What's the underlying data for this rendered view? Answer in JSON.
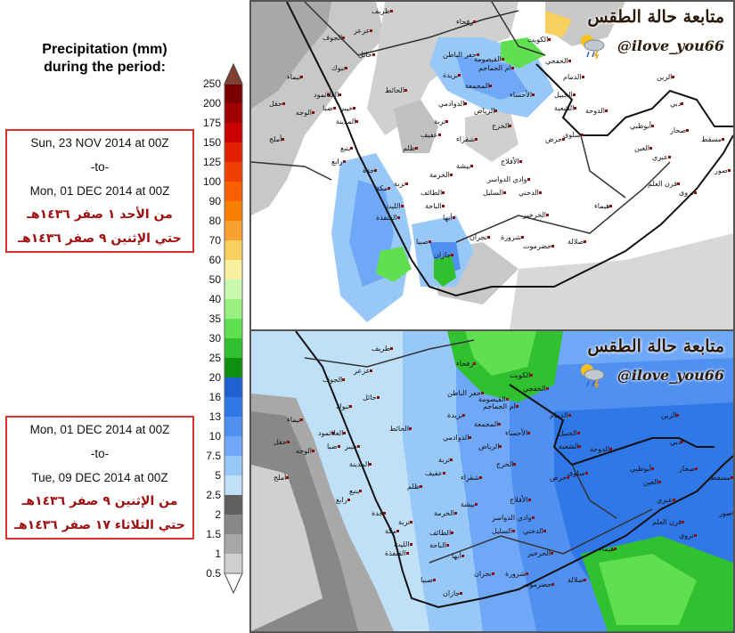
{
  "legend": {
    "title": "Precipitation (mm)\nduring the period:",
    "title_line1": "Precipitation (mm)",
    "title_line2": "during the period:",
    "levels": [
      "250",
      "200",
      "175",
      "150",
      "125",
      "100",
      "90",
      "80",
      "70",
      "60",
      "50",
      "40",
      "35",
      "30",
      "25",
      "20",
      "16",
      "13",
      "10",
      "7.5",
      "5",
      "2.5",
      "2",
      "1.5",
      "1",
      "0.5"
    ],
    "colors": [
      "#804030",
      "#7a0000",
      "#a00000",
      "#c80000",
      "#e02000",
      "#f04000",
      "#f86000",
      "#f88000",
      "#f8a030",
      "#f8d060",
      "#f8f0a0",
      "#c8f8b0",
      "#98f080",
      "#60e050",
      "#30c030",
      "#109010",
      "#2060d0",
      "#3078e8",
      "#5090f0",
      "#70a8f8",
      "#98c8f8",
      "#c0e0f8",
      "#606060",
      "#888888",
      "#a8a8a8",
      "#d0d0d0"
    ]
  },
  "periods": [
    {
      "start": "Sun, 23 NOV 2014 at 00Z",
      "sep": "-to-",
      "end": "Mon, 01 DEC 2014 at 00Z",
      "ar_line1": "من الأحد ١ صفر ١٤٣٦هـ",
      "ar_line2": "حتي الإثنين ٩ صفر ١٤٣٦هـ"
    },
    {
      "start": "Mon, 01 DEC 2014 at 00Z",
      "sep": "-to-",
      "end": "Tue, 09 DEC 2014 at 00Z",
      "ar_line1": "من الإثنين ٩ صفر ١٤٣٦هـ",
      "ar_line2": "حتي الثلاثاء ١٧ صفر ١٤٣٦هـ"
    }
  ],
  "watermark": {
    "arabic": "متابعة حالة الطقس",
    "handle": "@ilove_you66",
    "icon": "partly-cloudy-rain-icon"
  },
  "cities": {
    "top": [
      "طريف",
      "الجوف",
      "عرعر",
      "رفحاء",
      "تبوك",
      "حائل",
      "الكويت",
      "الخفجي",
      "بريدة",
      "الدمام",
      "المجمعة",
      "الأحساء",
      "الرياض",
      "المدينة",
      "ينبع",
      "الدوادمي",
      "الخرج",
      "جدة",
      "مكة",
      "الطائف",
      "الباحة",
      "بيشة",
      "السليل",
      "أبها",
      "نجران",
      "جازان",
      "شرورة",
      "الدوحة",
      "أبوظبي",
      "دبي",
      "العين",
      "صحار",
      "مسقط",
      "صور",
      "عبري",
      "نزوى",
      "قرن العلم",
      "هيماء",
      "صلالة",
      "حضرموت",
      "ثمود",
      "تيماء",
      "العلا",
      "الوجه",
      "ضبا",
      "حقل",
      "الحائط",
      "خيبر",
      "أملج",
      "رابغ",
      "القنفذة",
      "صبيا",
      "الليث",
      "تربة",
      "الخرمة",
      "ظلم",
      "عفيف",
      "شقراء",
      "حفر الباطن",
      "القيصومة",
      "الجبيل",
      "سلوى",
      "حرض",
      "الأفلاج",
      "وادي الدواسر",
      "الدخني",
      "الخرخير",
      "الرين",
      "ام الجماجم",
      "تربة",
      "الشعبة"
    ],
    "bottom": [
      "طريف",
      "الجوف",
      "عرعر",
      "رفحاء",
      "تبوك",
      "حائل",
      "الكويت",
      "الخفجي",
      "بريدة",
      "الدمام",
      "المجمعة",
      "الأحساء",
      "الرياض",
      "المدينة",
      "ينبع",
      "الدوادمي",
      "الخرج",
      "جدة",
      "مكة",
      "الطائف",
      "الباحة",
      "بيشة",
      "السليل",
      "أبها",
      "نجران",
      "جازان",
      "شرورة",
      "الدوحة",
      "أبوظبي",
      "دبي",
      "العين",
      "صحار",
      "مسقط",
      "صور",
      "عبري",
      "نزوى",
      "قرن العلم",
      "هيماء",
      "صلالة",
      "حضرموت",
      "ثمود",
      "تيماء",
      "العلا",
      "الوجه",
      "ضبا",
      "حقل",
      "الحائط",
      "خيبر",
      "أملج",
      "رابغ",
      "القنفذة",
      "صبيا",
      "الليث",
      "تربة",
      "الخرمة",
      "ظلم",
      "عفيف",
      "شقراء",
      "حفر الباطن",
      "القيصومة",
      "الجبيل",
      "سلوى",
      "حرض",
      "الأفلاج",
      "وادي الدواسر",
      "الدخني",
      "الخرخير",
      "الرين",
      "ام الجماجم",
      "تربة",
      "الشعبة"
    ]
  }
}
